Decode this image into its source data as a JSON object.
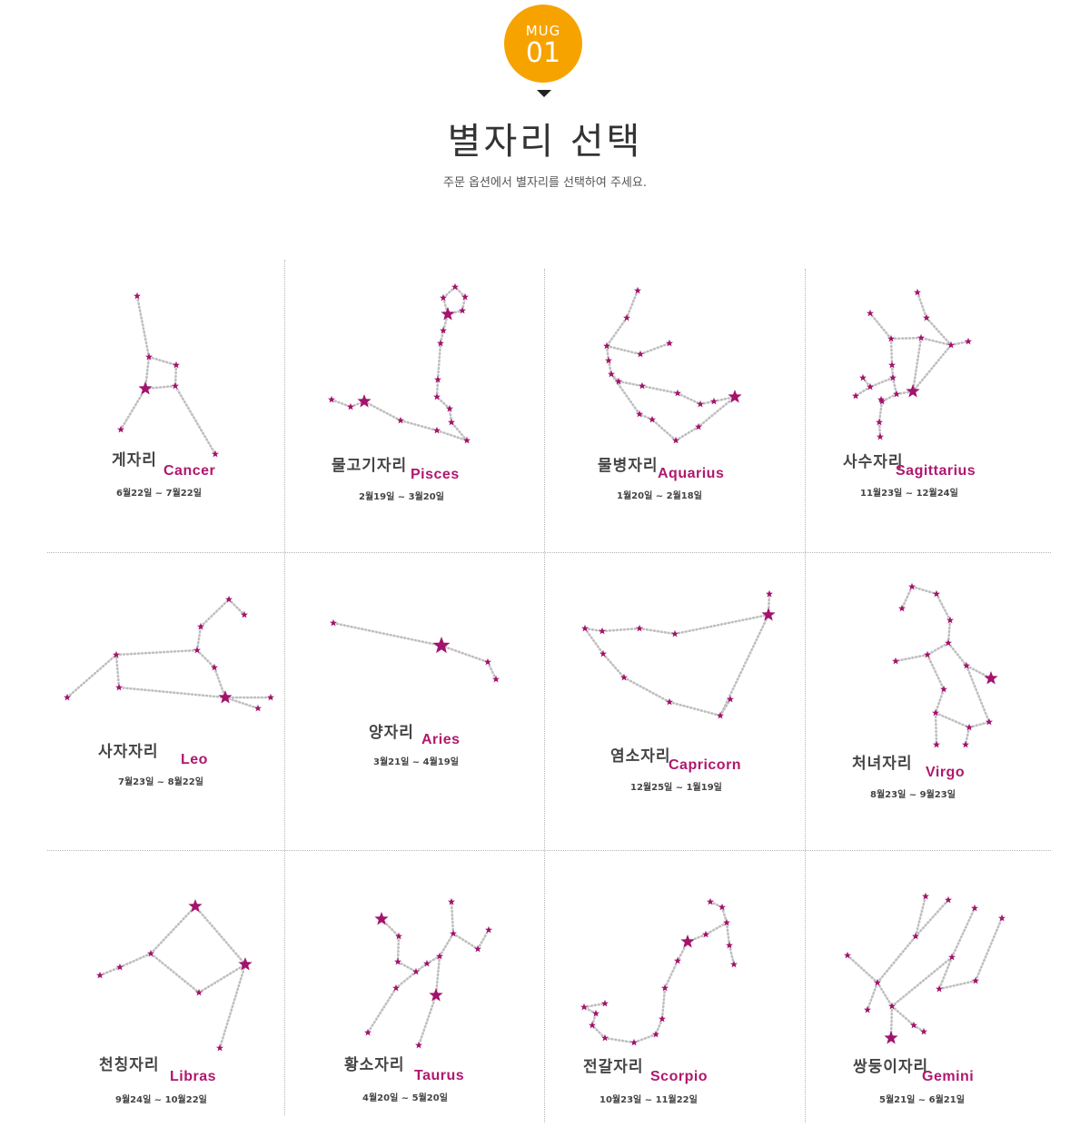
{
  "header": {
    "badge_top": "MUG",
    "badge_number": "01",
    "title": "별자리 선택",
    "subtitle": "주문 옵션에서 별자리를 선택하여 주세요."
  },
  "colors": {
    "accent": "#f6a300",
    "star": "#a3126c",
    "line": "#bfbfbf",
    "name_en": "#b0176f"
  },
  "constellations": [
    {
      "ko": "게자리",
      "en": "Cancer",
      "dates": "6월22일 ~ 7월22일"
    },
    {
      "ko": "물고기자리",
      "en": "Pisces",
      "dates": "2월19일 ~ 3월20일"
    },
    {
      "ko": "물병자리",
      "en": "Aquarius",
      "dates": "1월20일 ~ 2월18일"
    },
    {
      "ko": "사수자리",
      "en": "Sagittarius",
      "dates": "11월23일 ~ 12월24일"
    },
    {
      "ko": "사자자리",
      "en": "Leo",
      "dates": "7월23일 ~ 8월22일"
    },
    {
      "ko": "양자리",
      "en": "Aries",
      "dates": "3월21일 ~ 4월19일"
    },
    {
      "ko": "염소자리",
      "en": "Capricorn",
      "dates": "12월25일 ~ 1월19일"
    },
    {
      "ko": "처녀자리",
      "en": "Virgo",
      "dates": "8월23일 ~ 9월23일"
    },
    {
      "ko": "천칭자리",
      "en": "Libras",
      "dates": "9월24일 ~ 10월22일"
    },
    {
      "ko": "황소자리",
      "en": "Taurus",
      "dates": "4월20일 ~ 5월20일"
    },
    {
      "ko": "전갈자리",
      "en": "Scorpio",
      "dates": "10월23일 ~ 11월22일"
    },
    {
      "ko": "쌍둥이자리",
      "en": "Gemini",
      "dates": "5월21일 ~ 6월21일"
    }
  ]
}
